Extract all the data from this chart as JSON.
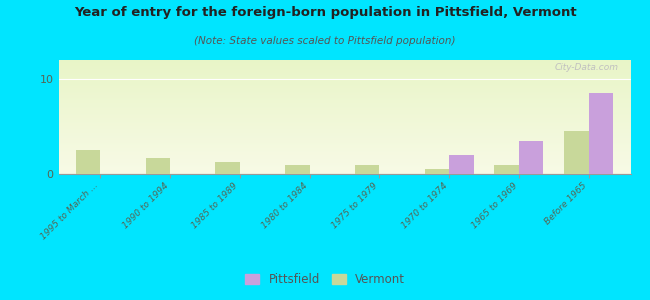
{
  "title": "Year of entry for the foreign-born population in Pittsfield, Vermont",
  "subtitle": "(Note: State values scaled to Pittsfield population)",
  "categories": [
    "1995 to March ...",
    "1990 to 1994",
    "1985 to 1989",
    "1980 to 1984",
    "1975 to 1979",
    "1970 to 1974",
    "1965 to 1969",
    "Before 1965"
  ],
  "pittsfield_values": [
    0,
    0,
    0,
    0,
    0,
    2,
    3.5,
    8.5
  ],
  "vermont_values": [
    2.5,
    1.7,
    1.3,
    0.9,
    0.9,
    0.5,
    0.9,
    4.5
  ],
  "pittsfield_color": "#c9a0dc",
  "vermont_color": "#c8d89a",
  "ylim": [
    0,
    12
  ],
  "yticks": [
    0,
    10
  ],
  "background_color": "#00e5ff",
  "watermark": "City-Data.com",
  "bar_width": 0.35
}
